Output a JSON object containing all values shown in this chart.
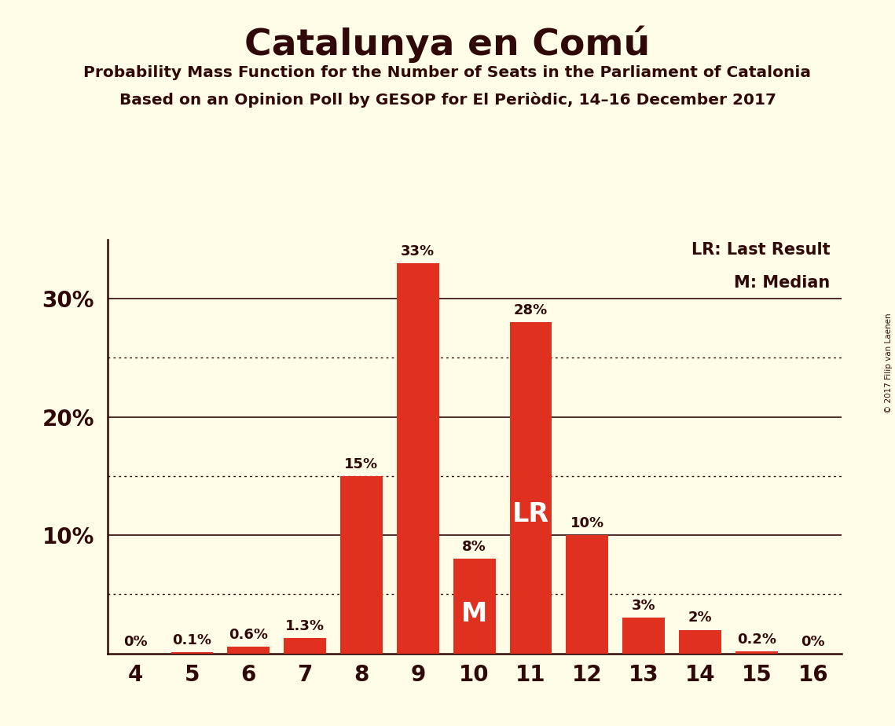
{
  "title": "Catalunya en Comú",
  "subtitle1": "Probability Mass Function for the Number of Seats in the Parliament of Catalonia",
  "subtitle2": "Based on an Opinion Poll by GESOP for El Periòdic, 14–16 December 2017",
  "copyright": "© 2017 Filip van Laenen",
  "categories": [
    4,
    5,
    6,
    7,
    8,
    9,
    10,
    11,
    12,
    13,
    14,
    15,
    16
  ],
  "values": [
    0.0,
    0.1,
    0.6,
    1.3,
    15.0,
    33.0,
    8.0,
    28.0,
    10.0,
    3.0,
    2.0,
    0.2,
    0.0
  ],
  "bar_color": "#e03020",
  "background_color": "#fffde8",
  "text_color": "#300808",
  "label_lr": 11,
  "label_m": 10,
  "legend_lr": "LR: Last Result",
  "legend_m": "M: Median",
  "ylim": [
    0,
    35
  ],
  "yticks_solid": [
    10,
    20,
    30
  ],
  "yticks_dotted": [
    5,
    15,
    25
  ],
  "bar_width": 0.75
}
